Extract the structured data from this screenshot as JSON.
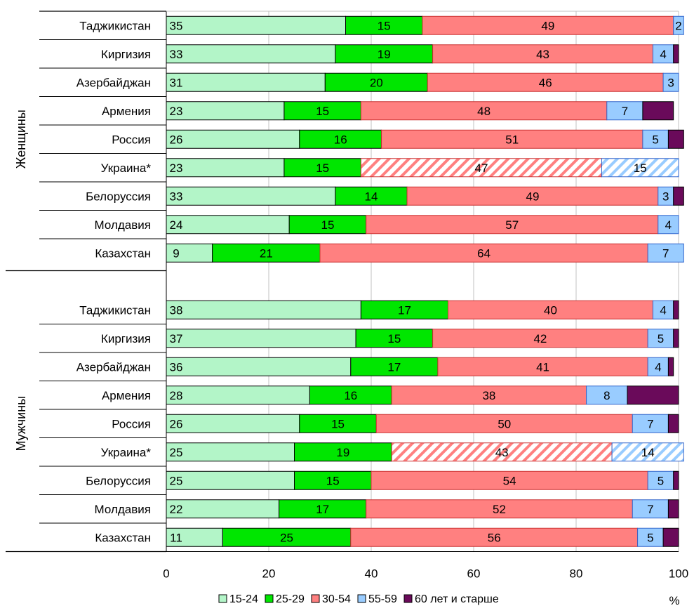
{
  "chart_data": {
    "type": "bar",
    "orientation": "horizontal",
    "stacked": true,
    "xlim": [
      0,
      100
    ],
    "x_ticks": [
      "0",
      "20",
      "40",
      "60",
      "80",
      "100"
    ],
    "xlabel": "%",
    "grid": true,
    "legend_position": "bottom",
    "series": [
      {
        "name": "15-24",
        "color": "#b3f5c8"
      },
      {
        "name": "25-29",
        "color": "#00e600"
      },
      {
        "name": "30-54",
        "color": "#ff8080"
      },
      {
        "name": "55-59",
        "color": "#99ccff"
      },
      {
        "name": "60 лет  и старше",
        "color": "#6a0a5a"
      }
    ],
    "groups": [
      {
        "label": "Женщины",
        "rows": [
          {
            "label": "Таджикистан",
            "values": [
              35,
              15,
              49,
              2,
              0
            ]
          },
          {
            "label": "Киргизия",
            "values": [
              33,
              19,
              43,
              4,
              1
            ]
          },
          {
            "label": "Азербайджан",
            "values": [
              31,
              20,
              46,
              3,
              0
            ]
          },
          {
            "label": "Армения",
            "values": [
              23,
              15,
              48,
              7,
              6
            ]
          },
          {
            "label": "Россия",
            "values": [
              26,
              16,
              51,
              5,
              3
            ]
          },
          {
            "label": "Украина*",
            "values": [
              23,
              15,
              47,
              15,
              0
            ],
            "hatched": [
              2,
              3
            ]
          },
          {
            "label": "Белоруссия",
            "values": [
              33,
              14,
              49,
              3,
              2
            ]
          },
          {
            "label": "Молдавия",
            "values": [
              24,
              15,
              57,
              4,
              0
            ]
          },
          {
            "label": "Казахстан",
            "values": [
              9,
              21,
              64,
              7,
              0
            ]
          }
        ]
      },
      {
        "label": "Мужчины",
        "rows": [
          {
            "label": "Таджикистан",
            "values": [
              38,
              17,
              40,
              4,
              1
            ]
          },
          {
            "label": "Киргизия",
            "values": [
              37,
              15,
              42,
              5,
              1
            ]
          },
          {
            "label": "Азербайджан",
            "values": [
              36,
              17,
              41,
              4,
              1
            ]
          },
          {
            "label": "Армения",
            "values": [
              28,
              16,
              38,
              8,
              10
            ]
          },
          {
            "label": "Россия",
            "values": [
              26,
              15,
              50,
              7,
              2
            ]
          },
          {
            "label": "Украина*",
            "values": [
              25,
              19,
              43,
              14,
              0
            ],
            "hatched": [
              2,
              3
            ]
          },
          {
            "label": "Белоруссия",
            "values": [
              25,
              15,
              54,
              5,
              1
            ]
          },
          {
            "label": "Молдавия",
            "values": [
              22,
              17,
              52,
              7,
              2
            ]
          },
          {
            "label": "Казахстан",
            "values": [
              11,
              25,
              56,
              5,
              3
            ]
          }
        ]
      }
    ]
  }
}
